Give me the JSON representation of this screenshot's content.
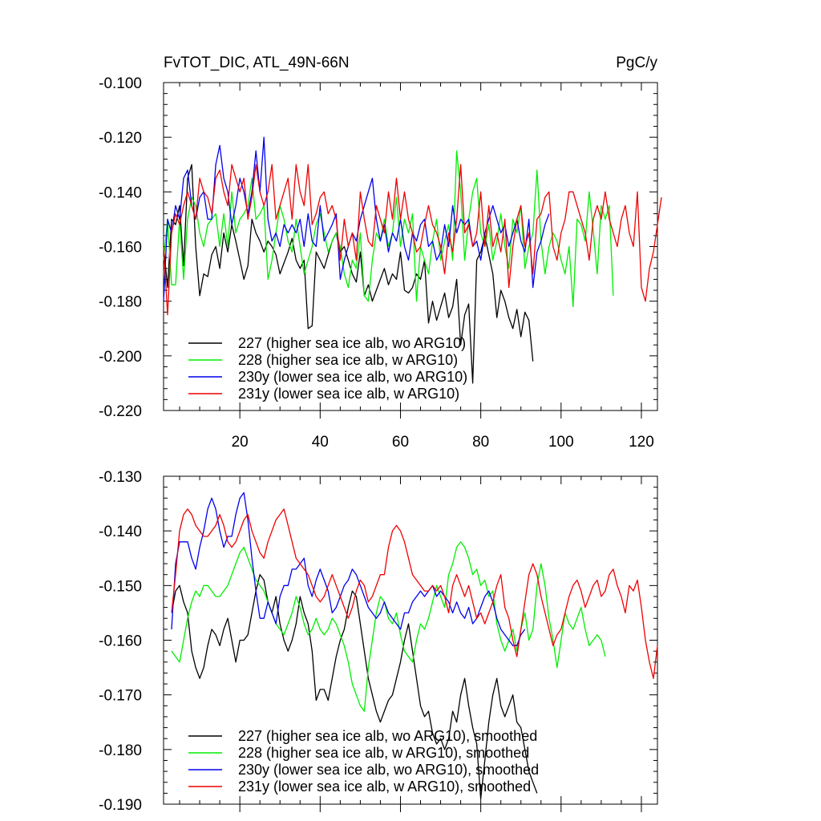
{
  "chart_data": [
    {
      "type": "line",
      "title": "FvTOT_DIC, ATL_49N-66N",
      "units": "PgC/y",
      "ylim": [
        -0.22,
        -0.1
      ],
      "yticks": [
        -0.1,
        -0.12,
        -0.14,
        -0.16,
        -0.18,
        -0.2,
        -0.22
      ],
      "ytick_labels": [
        "-0.100",
        "-0.120",
        "-0.140",
        "-0.160",
        "-0.180",
        "-0.200",
        "-0.220"
      ],
      "xlim": [
        1,
        124
      ],
      "xticks": [
        20,
        40,
        60,
        80,
        100,
        120
      ],
      "xtick_labels": [
        "20",
        "40",
        "60",
        "80",
        "100",
        "120"
      ],
      "legend_position": "bottom-left",
      "series": [
        {
          "name": "227 (higher sea ice alb, wo ARG10)",
          "color": "#000000",
          "x_start": 1,
          "values": [
            -0.16,
            -0.175,
            -0.15,
            -0.152,
            -0.145,
            -0.167,
            -0.135,
            -0.13,
            -0.16,
            -0.178,
            -0.17,
            -0.171,
            -0.163,
            -0.16,
            -0.168,
            -0.155,
            -0.162,
            -0.152,
            -0.158,
            -0.165,
            -0.172,
            -0.167,
            -0.15,
            -0.155,
            -0.158,
            -0.162,
            -0.158,
            -0.16,
            -0.163,
            -0.17,
            -0.166,
            -0.162,
            -0.157,
            -0.165,
            -0.168,
            -0.165,
            -0.19,
            -0.189,
            -0.162,
            -0.165,
            -0.168,
            -0.163,
            -0.158,
            -0.155,
            -0.162,
            -0.16,
            -0.165,
            -0.17,
            -0.173,
            -0.162,
            -0.178,
            -0.174,
            -0.18,
            -0.176,
            -0.172,
            -0.168,
            -0.174,
            -0.17,
            -0.172,
            -0.162,
            -0.176,
            -0.177,
            -0.175,
            -0.17,
            -0.172,
            -0.165,
            -0.188,
            -0.18,
            -0.187,
            -0.182,
            -0.177,
            -0.186,
            -0.182,
            -0.172,
            -0.196,
            -0.185,
            -0.181,
            -0.21,
            -0.165,
            -0.162,
            -0.156,
            -0.163,
            -0.17,
            -0.186,
            -0.176,
            -0.18,
            -0.186,
            -0.19,
            -0.183,
            -0.193,
            -0.184,
            -0.187,
            -0.202
          ]
        },
        {
          "name": "228 (higher sea ice alb, w ARG10)",
          "color": "#00ee00",
          "x_start": 1,
          "values": [
            -0.165,
            -0.15,
            -0.174,
            -0.174,
            -0.15,
            -0.172,
            -0.15,
            -0.142,
            -0.145,
            -0.155,
            -0.16,
            -0.152,
            -0.15,
            -0.148,
            -0.16,
            -0.148,
            -0.16,
            -0.14,
            -0.155,
            -0.15,
            -0.148,
            -0.145,
            -0.135,
            -0.15,
            -0.148,
            -0.145,
            -0.172,
            -0.165,
            -0.155,
            -0.145,
            -0.15,
            -0.158,
            -0.162,
            -0.15,
            -0.16,
            -0.17,
            -0.165,
            -0.16,
            -0.152,
            -0.148,
            -0.155,
            -0.162,
            -0.158,
            -0.155,
            -0.16,
            -0.17,
            -0.175,
            -0.165,
            -0.168,
            -0.155,
            -0.178,
            -0.18,
            -0.165,
            -0.155,
            -0.158,
            -0.15,
            -0.16,
            -0.155,
            -0.142,
            -0.16,
            -0.15,
            -0.155,
            -0.148,
            -0.18,
            -0.16,
            -0.165,
            -0.17,
            -0.158,
            -0.15,
            -0.165,
            -0.158,
            -0.152,
            -0.165,
            -0.125,
            -0.14,
            -0.165,
            -0.15,
            -0.14,
            -0.135,
            -0.155,
            -0.16,
            -0.152,
            -0.165,
            -0.158,
            -0.148,
            -0.16,
            -0.168,
            -0.15,
            -0.155,
            -0.145,
            -0.168,
            -0.16,
            -0.155,
            -0.132,
            -0.158,
            -0.17,
            -0.16,
            -0.155,
            -0.158,
            -0.165,
            -0.17,
            -0.16,
            -0.182,
            -0.15,
            -0.152,
            -0.158,
            -0.14,
            -0.154,
            -0.17,
            -0.145,
            -0.15,
            -0.145,
            -0.178
          ]
        },
        {
          "name": "230y (lower sea ice alb, wo ARG10)",
          "color": "#0000ee",
          "x_start": 1,
          "values": [
            -0.18,
            -0.15,
            -0.155,
            -0.145,
            -0.15,
            -0.135,
            -0.132,
            -0.145,
            -0.15,
            -0.142,
            -0.14,
            -0.15,
            -0.15,
            -0.13,
            -0.123,
            -0.135,
            -0.14,
            -0.152,
            -0.145,
            -0.135,
            -0.14,
            -0.148,
            -0.14,
            -0.125,
            -0.14,
            -0.12,
            -0.15,
            -0.158,
            -0.155,
            -0.16,
            -0.152,
            -0.155,
            -0.152,
            -0.155,
            -0.15,
            -0.16,
            -0.148,
            -0.158,
            -0.16,
            -0.145,
            -0.158,
            -0.155,
            -0.152,
            -0.148,
            -0.172,
            -0.165,
            -0.16,
            -0.155,
            -0.158,
            -0.15,
            -0.145,
            -0.14,
            -0.135,
            -0.15,
            -0.158,
            -0.152,
            -0.162,
            -0.155,
            -0.158,
            -0.15,
            -0.16,
            -0.165,
            -0.155,
            -0.158,
            -0.152,
            -0.15,
            -0.16,
            -0.158,
            -0.165,
            -0.162,
            -0.152,
            -0.16,
            -0.145,
            -0.155,
            -0.15,
            -0.152,
            -0.15,
            -0.16,
            -0.158,
            -0.165,
            -0.155,
            -0.15,
            -0.145,
            -0.15,
            -0.155,
            -0.152,
            -0.16,
            -0.155,
            -0.15,
            -0.158,
            -0.162,
            -0.15,
            -0.175,
            -0.162,
            -0.158,
            -0.152,
            -0.148
          ]
        },
        {
          "name": "231y (lower sea ice alb, w ARG10)",
          "color": "#ee0000",
          "x_start": 1,
          "values": [
            -0.16,
            -0.185,
            -0.155,
            -0.148,
            -0.152,
            -0.145,
            -0.14,
            -0.145,
            -0.15,
            -0.135,
            -0.14,
            -0.142,
            -0.148,
            -0.135,
            -0.132,
            -0.14,
            -0.145,
            -0.13,
            -0.135,
            -0.14,
            -0.135,
            -0.15,
            -0.142,
            -0.13,
            -0.14,
            -0.145,
            -0.14,
            -0.13,
            -0.15,
            -0.145,
            -0.14,
            -0.135,
            -0.15,
            -0.13,
            -0.14,
            -0.145,
            -0.13,
            -0.152,
            -0.148,
            -0.142,
            -0.14,
            -0.148,
            -0.145,
            -0.15,
            -0.165,
            -0.15,
            -0.16,
            -0.155,
            -0.165,
            -0.14,
            -0.15,
            -0.158,
            -0.16,
            -0.145,
            -0.15,
            -0.155,
            -0.14,
            -0.15,
            -0.135,
            -0.15,
            -0.14,
            -0.15,
            -0.155,
            -0.162,
            -0.16,
            -0.152,
            -0.145,
            -0.152,
            -0.155,
            -0.16,
            -0.17,
            -0.155,
            -0.162,
            -0.15,
            -0.13,
            -0.155,
            -0.152,
            -0.16,
            -0.155,
            -0.14,
            -0.16,
            -0.145,
            -0.16,
            -0.155,
            -0.162,
            -0.15,
            -0.175,
            -0.16,
            -0.15,
            -0.145,
            -0.16,
            -0.155,
            -0.17,
            -0.15,
            -0.148,
            -0.142,
            -0.14,
            -0.16,
            -0.165,
            -0.155,
            -0.15,
            -0.14,
            -0.14,
            -0.145,
            -0.15,
            -0.155,
            -0.165,
            -0.15,
            -0.145,
            -0.15,
            -0.14,
            -0.15,
            -0.155,
            -0.16,
            -0.15,
            -0.145,
            -0.155,
            -0.16,
            -0.14,
            -0.175,
            -0.18,
            -0.168,
            -0.162,
            -0.152,
            -0.142
          ]
        }
      ],
      "legend": [
        "227 (higher sea ice alb, wo ARG10)",
        "228 (higher sea ice alb, w ARG10)",
        "230y (lower sea ice alb, wo ARG10)",
        "231y (lower sea ice alb, w ARG10)"
      ]
    },
    {
      "type": "line",
      "title": "",
      "ylim": [
        -0.19,
        -0.13
      ],
      "yticks": [
        -0.13,
        -0.14,
        -0.15,
        -0.16,
        -0.17,
        -0.18,
        -0.19
      ],
      "ytick_labels": [
        "-0.130",
        "-0.140",
        "-0.150",
        "-0.160",
        "-0.170",
        "-0.180",
        "-0.190"
      ],
      "xlim": [
        1,
        124
      ],
      "xticks": [
        20,
        40,
        60,
        80,
        100,
        120
      ],
      "legend_position": "bottom-left",
      "series": [
        {
          "name": "227 (higher sea ice alb, wo ARG10), smoothed",
          "color": "#000000",
          "x_start": 3,
          "values": [
            -0.155,
            -0.151,
            -0.15,
            -0.153,
            -0.155,
            -0.162,
            -0.165,
            -0.167,
            -0.165,
            -0.161,
            -0.158,
            -0.159,
            -0.161,
            -0.158,
            -0.156,
            -0.16,
            -0.164,
            -0.16,
            -0.16,
            -0.159,
            -0.155,
            -0.151,
            -0.148,
            -0.149,
            -0.153,
            -0.155,
            -0.152,
            -0.157,
            -0.16,
            -0.162,
            -0.16,
            -0.157,
            -0.152,
            -0.155,
            -0.157,
            -0.162,
            -0.171,
            -0.169,
            -0.169,
            -0.171,
            -0.167,
            -0.163,
            -0.16,
            -0.158,
            -0.154,
            -0.151,
            -0.152,
            -0.157,
            -0.162,
            -0.167,
            -0.17,
            -0.173,
            -0.175,
            -0.173,
            -0.171,
            -0.17,
            -0.167,
            -0.164,
            -0.16,
            -0.157,
            -0.162,
            -0.167,
            -0.172,
            -0.174,
            -0.173,
            -0.177,
            -0.179,
            -0.178,
            -0.18,
            -0.178,
            -0.173,
            -0.175,
            -0.17,
            -0.167,
            -0.172,
            -0.176,
            -0.179,
            -0.189,
            -0.182,
            -0.175,
            -0.17,
            -0.167,
            -0.172,
            -0.174,
            -0.172,
            -0.17,
            -0.175,
            -0.176,
            -0.18,
            -0.184,
            -0.186,
            -0.188
          ]
        },
        {
          "name": "228 (higher sea ice alb, w ARG10), smoothed",
          "color": "#00ee00",
          "x_start": 3,
          "values": [
            -0.162,
            -0.163,
            -0.164,
            -0.16,
            -0.156,
            -0.153,
            -0.151,
            -0.152,
            -0.15,
            -0.15,
            -0.151,
            -0.152,
            -0.152,
            -0.151,
            -0.15,
            -0.148,
            -0.146,
            -0.144,
            -0.143,
            -0.145,
            -0.147,
            -0.149,
            -0.15,
            -0.151,
            -0.153,
            -0.155,
            -0.157,
            -0.158,
            -0.159,
            -0.157,
            -0.155,
            -0.152,
            -0.154,
            -0.157,
            -0.159,
            -0.158,
            -0.156,
            -0.158,
            -0.159,
            -0.158,
            -0.156,
            -0.157,
            -0.159,
            -0.161,
            -0.164,
            -0.168,
            -0.17,
            -0.172,
            -0.173,
            -0.165,
            -0.16,
            -0.155,
            -0.152,
            -0.153,
            -0.156,
            -0.157,
            -0.155,
            -0.159,
            -0.162,
            -0.163,
            -0.164,
            -0.16,
            -0.157,
            -0.158,
            -0.156,
            -0.153,
            -0.15,
            -0.152,
            -0.154,
            -0.148,
            -0.146,
            -0.143,
            -0.142,
            -0.143,
            -0.145,
            -0.148,
            -0.147,
            -0.15,
            -0.149,
            -0.152,
            -0.151,
            -0.157,
            -0.16,
            -0.162,
            -0.16,
            -0.158,
            -0.162,
            -0.158,
            -0.155,
            -0.16,
            -0.158,
            -0.15,
            -0.146,
            -0.15,
            -0.156,
            -0.16,
            -0.165,
            -0.16,
            -0.155,
            -0.157,
            -0.158,
            -0.156,
            -0.154,
            -0.158,
            -0.161,
            -0.16,
            -0.159,
            -0.16,
            -0.163
          ]
        },
        {
          "name": "230y (lower sea ice alb, wo ARG10), smoothed",
          "color": "#0000ee",
          "x_start": 3,
          "values": [
            -0.158,
            -0.146,
            -0.142,
            -0.142,
            -0.142,
            -0.145,
            -0.147,
            -0.143,
            -0.14,
            -0.136,
            -0.134,
            -0.136,
            -0.14,
            -0.143,
            -0.141,
            -0.141,
            -0.137,
            -0.134,
            -0.133,
            -0.138,
            -0.145,
            -0.151,
            -0.156,
            -0.156,
            -0.153,
            -0.155,
            -0.157,
            -0.152,
            -0.15,
            -0.15,
            -0.147,
            -0.147,
            -0.146,
            -0.145,
            -0.15,
            -0.152,
            -0.149,
            -0.147,
            -0.149,
            -0.151,
            -0.155,
            -0.154,
            -0.152,
            -0.15,
            -0.149,
            -0.147,
            -0.148,
            -0.15,
            -0.152,
            -0.154,
            -0.155,
            -0.156,
            -0.155,
            -0.153,
            -0.155,
            -0.156,
            -0.157,
            -0.158,
            -0.155,
            -0.155,
            -0.153,
            -0.152,
            -0.151,
            -0.152,
            -0.151,
            -0.15,
            -0.152,
            -0.151,
            -0.152,
            -0.153,
            -0.155,
            -0.153,
            -0.155,
            -0.156,
            -0.154,
            -0.157,
            -0.156,
            -0.154,
            -0.152,
            -0.151,
            -0.153,
            -0.156,
            -0.158,
            -0.159,
            -0.16,
            -0.161,
            -0.161,
            -0.159,
            -0.158
          ]
        },
        {
          "name": "231y (lower sea ice alb, w ARG10), smoothed",
          "color": "#ee0000",
          "x_start": 3,
          "values": [
            -0.155,
            -0.148,
            -0.14,
            -0.137,
            -0.136,
            -0.137,
            -0.139,
            -0.14,
            -0.141,
            -0.141,
            -0.14,
            -0.139,
            -0.137,
            -0.139,
            -0.142,
            -0.143,
            -0.142,
            -0.14,
            -0.138,
            -0.137,
            -0.14,
            -0.142,
            -0.144,
            -0.145,
            -0.142,
            -0.14,
            -0.138,
            -0.137,
            -0.136,
            -0.139,
            -0.142,
            -0.145,
            -0.146,
            -0.147,
            -0.148,
            -0.15,
            -0.152,
            -0.153,
            -0.152,
            -0.15,
            -0.148,
            -0.15,
            -0.152,
            -0.154,
            -0.156,
            -0.154,
            -0.151,
            -0.149,
            -0.15,
            -0.153,
            -0.152,
            -0.15,
            -0.148,
            -0.148,
            -0.143,
            -0.14,
            -0.139,
            -0.14,
            -0.142,
            -0.145,
            -0.148,
            -0.149,
            -0.15,
            -0.151,
            -0.151,
            -0.15,
            -0.151,
            -0.15,
            -0.152,
            -0.155,
            -0.15,
            -0.148,
            -0.15,
            -0.152,
            -0.15,
            -0.153,
            -0.156,
            -0.155,
            -0.157,
            -0.155,
            -0.153,
            -0.15,
            -0.148,
            -0.154,
            -0.156,
            -0.16,
            -0.163,
            -0.158,
            -0.153,
            -0.148,
            -0.146,
            -0.148,
            -0.152,
            -0.155,
            -0.158,
            -0.161,
            -0.159,
            -0.158,
            -0.155,
            -0.152,
            -0.15,
            -0.149,
            -0.151,
            -0.154,
            -0.152,
            -0.15,
            -0.149,
            -0.152,
            -0.151,
            -0.148,
            -0.147,
            -0.15,
            -0.152,
            -0.155,
            -0.15,
            -0.151,
            -0.149,
            -0.154,
            -0.16,
            -0.164,
            -0.167,
            -0.161
          ]
        }
      ],
      "legend": [
        "227 (higher sea ice alb, wo ARG10), smoothed",
        "228 (higher sea ice alb, w ARG10), smoothed",
        "230y (lower sea ice alb, wo ARG10), smoothed",
        "231y (lower sea ice alb, w ARG10), smoothed"
      ]
    }
  ]
}
